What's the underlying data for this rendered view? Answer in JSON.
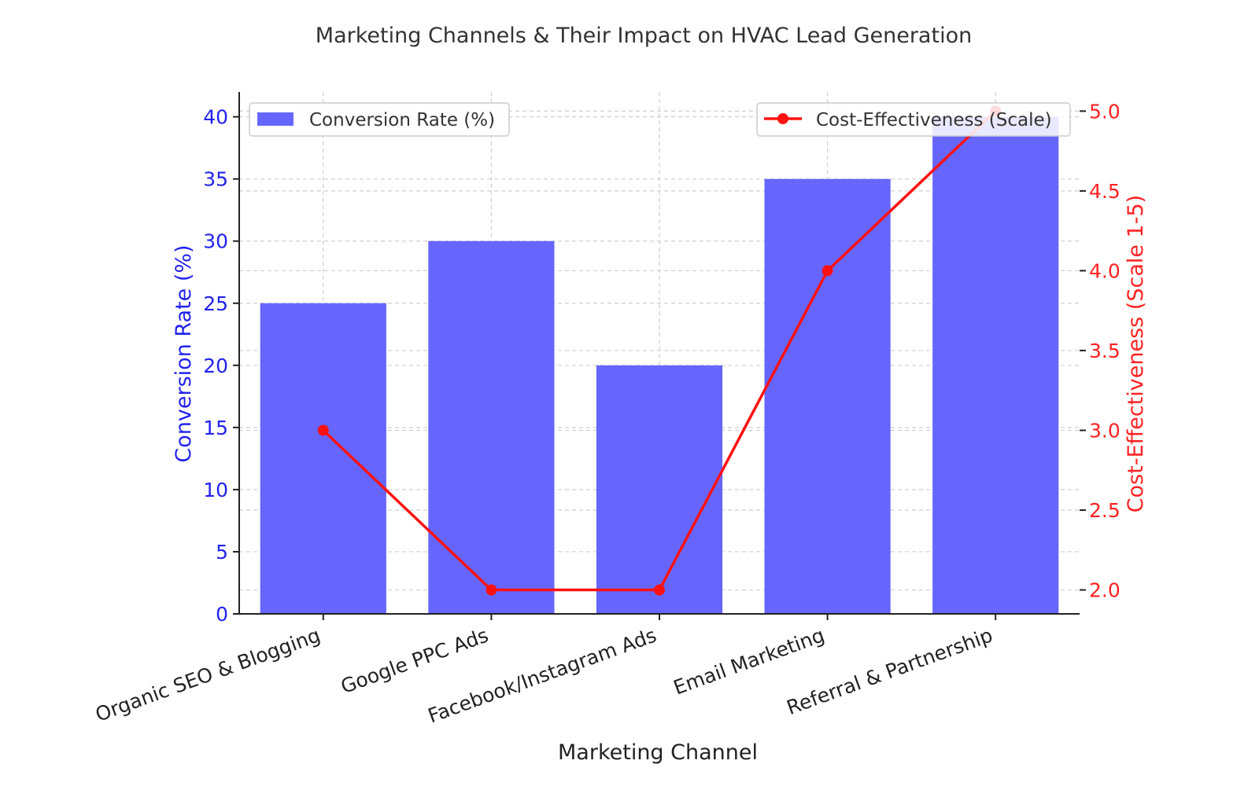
{
  "chart_data": {
    "type": "bar",
    "title": "Marketing Channels & Their Impact on HVAC Lead Generation",
    "xlabel": "Marketing Channel",
    "ylabel": "Conversion Rate (%)",
    "y2label": "Cost-Effectiveness (Scale 1-5)",
    "categories": [
      "Organic SEO & Blogging",
      "Google PPC Ads",
      "Facebook/Instagram Ads",
      "Email Marketing",
      "Referral & Partnership"
    ],
    "series": [
      {
        "name": "Conversion Rate (%)",
        "type": "bar",
        "axis": "left",
        "color": "#6666ff",
        "values": [
          25,
          30,
          20,
          35,
          40
        ]
      },
      {
        "name": "Cost-Effectiveness (Scale)",
        "type": "line",
        "axis": "right",
        "color": "#ff1111",
        "values": [
          3,
          2,
          2,
          4,
          5
        ]
      }
    ],
    "ylim": [
      0,
      42
    ],
    "y2lim": [
      1.85,
      5.12
    ],
    "yticks": [
      0,
      5,
      10,
      15,
      20,
      25,
      30,
      35,
      40
    ],
    "y2ticks": [
      2.0,
      2.5,
      3.0,
      3.5,
      4.0,
      4.5,
      5.0
    ],
    "y_color": "#2222ee",
    "y2_color": "#ff2222",
    "grid": true,
    "legend": [
      "upper-left",
      "upper-right"
    ]
  }
}
